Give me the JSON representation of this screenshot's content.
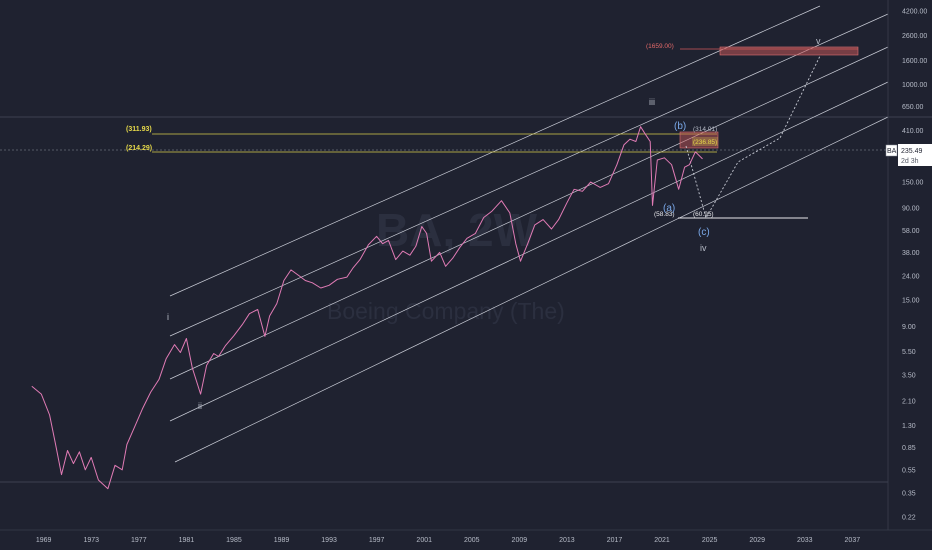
{
  "watermark": {
    "ticker": "BA, 2W",
    "company": "Boeing Company (The)"
  },
  "colors": {
    "background": "#1f2230",
    "price_line": "#e07bb5",
    "channel": "#c9ccd6",
    "fib_line": "#d8cc4a",
    "fib_label": "#e6d94a",
    "zone_fill": "#d05a5a",
    "target_label": "#e46a6a",
    "blue_wave": "#7aa8e8"
  },
  "price_tag": {
    "symbol": "BA",
    "value": "235.49",
    "countdown": "2d 3h"
  },
  "annotations": {
    "fib_311": "(311.93)",
    "fib_214": "(214.29)",
    "level_314": "(314.01)",
    "level_236": "(236.85)",
    "target_1659": "(1659.00)",
    "low_5883": "(58.83)",
    "low_6095": "(60.95)"
  },
  "waves": {
    "i": "i",
    "ii": "ii",
    "iii": "iii",
    "iv": "iv",
    "v": "v",
    "a": "(a)",
    "b": "(b)",
    "c": "(c)"
  },
  "chart_data": {
    "type": "line",
    "title": "",
    "xlabel": "",
    "ylabel": "",
    "y_scale": "log",
    "x_ticks": [
      "1969",
      "1973",
      "1977",
      "1981",
      "1985",
      "1989",
      "1993",
      "1997",
      "2001",
      "2005",
      "2009",
      "2013",
      "2017",
      "2021",
      "2025",
      "2029",
      "2033",
      "2037"
    ],
    "y_ticks": [
      "4200.00",
      "2600.00",
      "1600.00",
      "1000.00",
      "650.00",
      "410.00",
      "250.00",
      "150.00",
      "90.00",
      "58.00",
      "38.00",
      "24.00",
      "15.00",
      "9.00",
      "5.50",
      "3.50",
      "2.10",
      "1.30",
      "0.85",
      "0.55",
      "0.35",
      "0.22"
    ],
    "x_range": [
      1966,
      2040
    ],
    "y_range": [
      0.17,
      5200
    ],
    "series": [
      {
        "x": [
          1968,
          1968.8,
          1969.5,
          1970,
          1970.5,
          1971,
          1971.5,
          1972,
          1972.5,
          1973,
          1973.6,
          1974.4,
          1975,
          1975.6,
          1976,
          1976.7,
          1977.3,
          1978,
          1978.7,
          1979.3,
          1980,
          1980.5,
          1981,
          1981.5,
          1982.2,
          1982.7,
          1983.3,
          1983.7,
          1984.3,
          1985,
          1985.7,
          1986.3,
          1987,
          1987.6,
          1988,
          1988.6,
          1989.2,
          1989.8,
          1990.5,
          1991,
          1991.6,
          1992.3,
          1993,
          1993.7,
          1994.5,
          1995,
          1995.6,
          1996.3,
          1997,
          1997.5,
          1998,
          1998.6,
          1999.2,
          1999.8,
          2000.3,
          2000.8,
          2001.2,
          2001.6,
          2002.3,
          2002.8,
          2003.4,
          2004,
          2004.6,
          2005.3,
          2006,
          2006.7,
          2007.5,
          2008.2,
          2008.7,
          2009.1,
          2009.7,
          2010.3,
          2011,
          2011.7,
          2012.3,
          2013,
          2013.6,
          2014.3,
          2015,
          2015.8,
          2016.5,
          2017.2,
          2017.8,
          2018.3,
          2018.8,
          2019.2,
          2019.6,
          2020,
          2020.2,
          2020.6,
          2021.2,
          2021.8,
          2022.4,
          2022.9,
          2023.3,
          2023.8,
          2024.4
        ],
        "values": [
          2.8,
          2.4,
          1.6,
          0.9,
          0.5,
          0.8,
          0.62,
          0.78,
          0.55,
          0.7,
          0.45,
          0.38,
          0.6,
          0.55,
          0.9,
          1.3,
          1.8,
          2.5,
          3.2,
          4.8,
          6.3,
          5.4,
          7.1,
          4.0,
          2.4,
          4.2,
          5.3,
          5.0,
          6.2,
          7.5,
          9.3,
          11.5,
          12.5,
          7.4,
          11.0,
          14.0,
          22.0,
          27.0,
          24.0,
          22.0,
          21.0,
          19.0,
          20.0,
          22.5,
          23.5,
          28.0,
          33.0,
          44.0,
          52.0,
          45.0,
          48.0,
          33.0,
          39.0,
          36.0,
          43.0,
          63.0,
          55.0,
          32.0,
          38.0,
          29.0,
          34.0,
          42.0,
          50.0,
          55.0,
          75.0,
          85.0,
          104.0,
          82.0,
          45.0,
          32.0,
          45.0,
          65.0,
          72.0,
          60.0,
          72.0,
          100.0,
          130.0,
          125.0,
          150.0,
          135.0,
          145.0,
          210.0,
          310.0,
          345.0,
          330.0,
          440.0,
          380.0,
          330.0,
          95.0,
          230.0,
          240.0,
          210.0,
          130.0,
          200.0,
          210.0,
          270.0,
          235.0
        ]
      }
    ],
    "horizontal_levels": [
      311.93,
      214.29,
      58.83,
      60.95
    ],
    "target_zone": [
      1550,
      1830
    ],
    "grid": false,
    "legend": "none"
  }
}
